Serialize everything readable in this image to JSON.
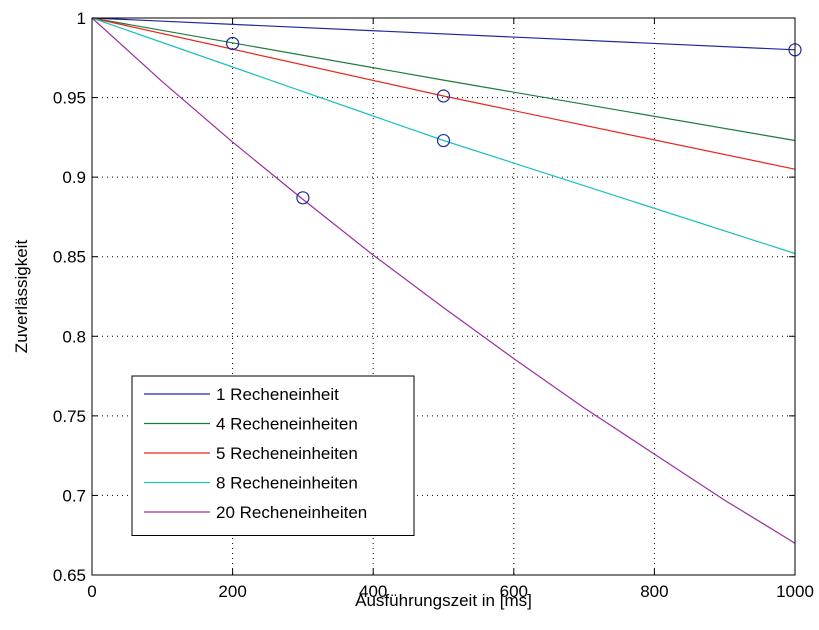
{
  "chart_data": {
    "type": "line",
    "title": "",
    "xlabel": "Ausführungszeit in [ms]",
    "ylabel": "Zuverlässigkeit",
    "xlim": [
      0,
      1000
    ],
    "ylim": [
      0.65,
      1
    ],
    "xticks": [
      0,
      200,
      400,
      600,
      800,
      1000
    ],
    "xtick_labels": [
      "0",
      "200",
      "400",
      "600",
      "800",
      "1000"
    ],
    "yticks": [
      0.65,
      0.7,
      0.75,
      0.8,
      0.85,
      0.9,
      0.95,
      1
    ],
    "ytick_labels": [
      "0.65",
      "0.7",
      "0.75",
      "0.8",
      "0.85",
      "0.9",
      "0.95",
      "1"
    ],
    "grid": true,
    "legend_position": "bottom-left",
    "series": [
      {
        "name": "1 Recheneinheit",
        "color": "#1f2a9a",
        "x": [
          0,
          1000
        ],
        "y": [
          1,
          0.98
        ]
      },
      {
        "name": "4 Recheneinheiten",
        "color": "#1e7a3c",
        "x": [
          0,
          500,
          1000
        ],
        "y": [
          1,
          0.961,
          0.923
        ]
      },
      {
        "name": "5 Recheneinheiten",
        "color": "#e8261f",
        "x": [
          0,
          500,
          1000
        ],
        "y": [
          1,
          0.951,
          0.905
        ]
      },
      {
        "name": "8 Recheneinheiten",
        "color": "#1fbfbf",
        "x": [
          0,
          500,
          1000
        ],
        "y": [
          1,
          0.923,
          0.852
        ]
      },
      {
        "name": "20 Recheneinheiten",
        "color": "#9b2fa0",
        "x": [
          0,
          100,
          200,
          300,
          400,
          500,
          600,
          700,
          800,
          900,
          1000
        ],
        "y": [
          1,
          0.96,
          0.922,
          0.886,
          0.851,
          0.818,
          0.786,
          0.755,
          0.726,
          0.697,
          0.67
        ]
      }
    ],
    "markers": [
      {
        "x": 200,
        "y": 0.984
      },
      {
        "x": 500,
        "y": 0.951
      },
      {
        "x": 500,
        "y": 0.923
      },
      {
        "x": 300,
        "y": 0.887
      },
      {
        "x": 1000,
        "y": 0.98
      }
    ],
    "marker_color": "#1f2a9a"
  }
}
